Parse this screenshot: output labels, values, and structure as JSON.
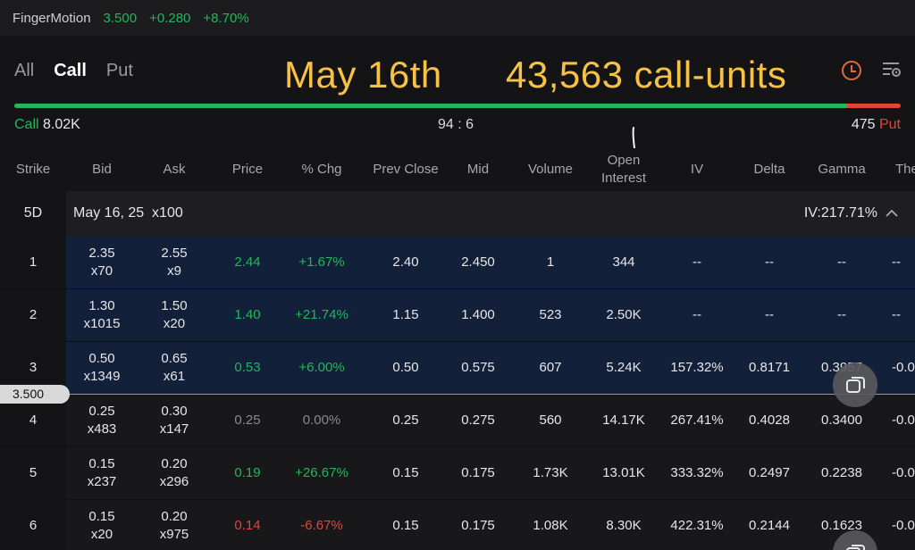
{
  "ticker": {
    "name": "FingerMotion",
    "price": "3.500",
    "change": "+0.280",
    "change_pct": "+8.70%"
  },
  "tabs": [
    {
      "label": "All",
      "active": false
    },
    {
      "label": "Call",
      "active": true
    },
    {
      "label": "Put",
      "active": false
    }
  ],
  "overlay": {
    "date": "May 16th",
    "units": "43,563 call-units"
  },
  "summary": {
    "call_label": "Call",
    "call_value": "8.02K",
    "ratio": "94 : 6",
    "put_value": "475",
    "put_label": "Put",
    "call_fraction": 0.94
  },
  "columns": [
    "Strike",
    "Bid",
    "Ask",
    "Price",
    "% Chg",
    "Prev Close",
    "Mid",
    "Volume",
    "Open",
    "Interest",
    "IV",
    "Delta",
    "Gamma",
    "The"
  ],
  "group": {
    "days": "5D",
    "expiry": "May 16, 25  x100",
    "iv": "IV:217.71%"
  },
  "current_price": "3.500",
  "rows": [
    {
      "strike": "1",
      "bid": "2.35",
      "bid_size": "x70",
      "ask": "2.55",
      "ask_size": "x9",
      "price": "2.44",
      "chg": "+1.67%",
      "prev": "2.40",
      "mid": "2.450",
      "volume": "1",
      "oi": "344",
      "iv": "--",
      "delta": "--",
      "gamma": "--",
      "theta": "--",
      "dir": "up",
      "itm": true
    },
    {
      "strike": "2",
      "bid": "1.30",
      "bid_size": "x1015",
      "ask": "1.50",
      "ask_size": "x20",
      "price": "1.40",
      "chg": "+21.74%",
      "prev": "1.15",
      "mid": "1.400",
      "volume": "523",
      "oi": "2.50K",
      "iv": "--",
      "delta": "--",
      "gamma": "--",
      "theta": "--",
      "dir": "up",
      "itm": true
    },
    {
      "strike": "3",
      "bid": "0.50",
      "bid_size": "x1349",
      "ask": "0.65",
      "ask_size": "x61",
      "price": "0.53",
      "chg": "+6.00%",
      "prev": "0.50",
      "mid": "0.575",
      "volume": "607",
      "oi": "5.24K",
      "iv": "157.32%",
      "delta": "0.8171",
      "gamma": "0.3957",
      "theta": "-0.0",
      "dir": "up",
      "itm": true
    },
    {
      "strike": "4",
      "bid": "0.25",
      "bid_size": "x483",
      "ask": "0.30",
      "ask_size": "x147",
      "price": "0.25",
      "chg": "0.00%",
      "prev": "0.25",
      "mid": "0.275",
      "volume": "560",
      "oi": "14.17K",
      "iv": "267.41%",
      "delta": "0.4028",
      "gamma": "0.3400",
      "theta": "-0.0",
      "dir": "flat",
      "itm": false
    },
    {
      "strike": "5",
      "bid": "0.15",
      "bid_size": "x237",
      "ask": "0.20",
      "ask_size": "x296",
      "price": "0.19",
      "chg": "+26.67%",
      "prev": "0.15",
      "mid": "0.175",
      "volume": "1.73K",
      "oi": "13.01K",
      "iv": "333.32%",
      "delta": "0.2497",
      "gamma": "0.2238",
      "theta": "-0.0",
      "dir": "up",
      "itm": false
    },
    {
      "strike": "6",
      "bid": "0.15",
      "bid_size": "x20",
      "ask": "0.20",
      "ask_size": "x975",
      "price": "0.14",
      "chg": "-6.67%",
      "prev": "0.15",
      "mid": "0.175",
      "volume": "1.08K",
      "oi": "8.30K",
      "iv": "422.31%",
      "delta": "0.2144",
      "gamma": "0.1623",
      "theta": "-0.0",
      "dir": "down",
      "itm": false
    }
  ]
}
